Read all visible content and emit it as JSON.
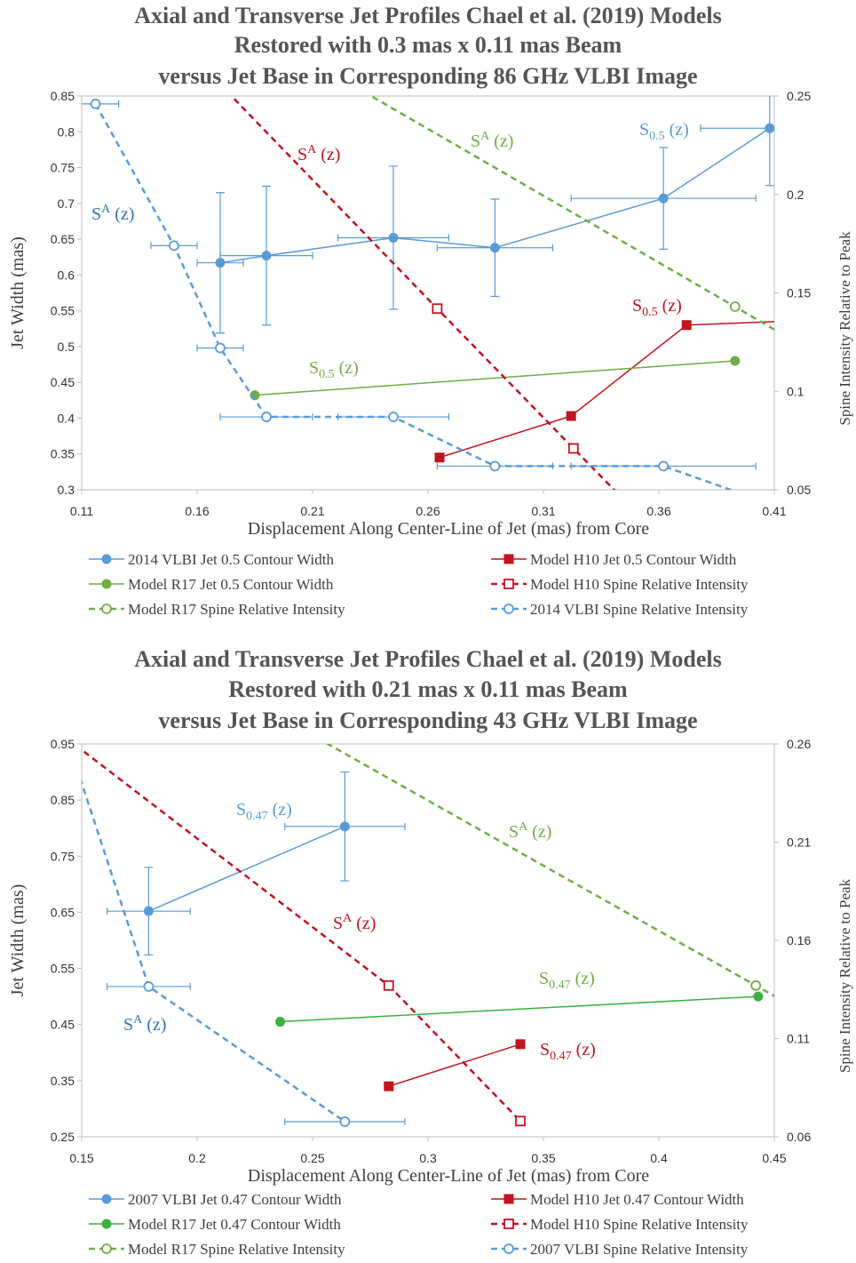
{
  "chart_data": [
    {
      "type": "line",
      "title": [
        "Axial and Transverse Jet Profiles Chael et al. (2019) Models",
        "Restored with 0.3 mas x 0.11 mas Beam",
        "versus Jet Base in Corresponding 86 GHz VLBI Image"
      ],
      "x_label": "Displacement Along Center-Line of Jet (mas)  from Core",
      "y_label": "Jet Width (mas)",
      "y2_label": "Spine Intensity Relative to Peak",
      "xlim": [
        0.11,
        0.41
      ],
      "xticks": [
        0.11,
        0.16,
        0.21,
        0.26,
        0.31,
        0.36,
        0.41
      ],
      "ylim": [
        0.3,
        0.85
      ],
      "yticks": [
        0.3,
        0.35,
        0.4,
        0.45,
        0.5,
        0.55,
        0.6,
        0.65,
        0.7,
        0.75,
        0.8,
        0.85
      ],
      "y2lim": [
        0.05,
        0.25
      ],
      "y2ticks": [
        0.05,
        0.1,
        0.15,
        0.2,
        0.25
      ],
      "series": [
        {
          "name": "2014 VLBI Jet 0.5 Contour Width",
          "color": "#5b9bd5",
          "marker": "circle",
          "line_style": "solid",
          "x": [
            0.17,
            0.19,
            0.245,
            0.289,
            0.362,
            0.408
          ],
          "values": [
            0.617,
            0.627,
            0.652,
            0.638,
            0.707,
            0.805
          ],
          "yerr": [
            0.098,
            0.097,
            0.1,
            0.068,
            0.071,
            0.08
          ],
          "xerr": [
            0.01,
            0.02,
            0.024,
            0.025,
            0.04,
            0.03
          ]
        },
        {
          "name": "Model H10 Jet 0.5 Contour Width",
          "color": "#c0141e",
          "marker": "square",
          "line_style": "solid",
          "x": [
            0.265,
            0.322,
            0.372,
            0.45
          ],
          "values": [
            0.345,
            0.403,
            0.53,
            0.54
          ]
        },
        {
          "name": "Model R17 Jet 0.5 Contour Width",
          "color": "#70ad47",
          "marker": "circle",
          "line_style": "solid",
          "x": [
            0.185,
            0.393
          ],
          "values": [
            0.432,
            0.48
          ]
        },
        {
          "name": "Model H10 Spine Relative Intensity",
          "color": "#c0141e",
          "marker": "open-square",
          "line_style": "dashed",
          "axis": "y2",
          "x": [
            0.16,
            0.264,
            0.323,
            0.37
          ],
          "values": [
            0.268,
            0.142,
            0.071,
            0.015
          ]
        },
        {
          "name": "Model R17 Spine Relative Intensity",
          "color": "#70ad47",
          "marker": "open-circle",
          "line_style": "dashed",
          "axis": "y2",
          "x": [
            0.2,
            0.393,
            0.45
          ],
          "values": [
            0.274,
            0.143,
            0.104
          ]
        },
        {
          "name": "2014 VLBI Spine Relative Intensity",
          "color": "#5b9bd5",
          "marker": "open-circle",
          "line_style": "dashed",
          "axis": "y2",
          "x": [
            0.116,
            0.15,
            0.17,
            0.19,
            0.245,
            0.289,
            0.362,
            0.42
          ],
          "values": [
            0.246,
            0.174,
            0.122,
            0.087,
            0.087,
            0.062,
            0.062,
            0.038
          ],
          "xerr": [
            0.01,
            0.01,
            0.01,
            0.02,
            0.024,
            0.025,
            0.04,
            null
          ]
        }
      ],
      "annotations": [
        {
          "base": "S",
          "sub": "0.5",
          "rest": "(z)",
          "color": "#5b9bd5"
        },
        {
          "base": "S",
          "sup": "A",
          "rest": "(z)",
          "color": "#c0141e"
        },
        {
          "base": "S",
          "sup": "A",
          "rest": "(z)",
          "color": "#70ad47"
        },
        {
          "base": "S",
          "sup": "A",
          "rest": "(z)",
          "color": "#2e75b6"
        },
        {
          "base": "S",
          "sub": "0.5",
          "rest": "(z)",
          "color": "#c0141e"
        },
        {
          "base": "S",
          "sub": "0.5",
          "rest": "(z)",
          "color": "#70ad47"
        }
      ]
    },
    {
      "type": "line",
      "title": [
        "Axial and Transverse Jet Profiles Chael et al. (2019) Models",
        "Restored with 0.21 mas x 0.11 mas Beam",
        "versus Jet Base in Corresponding 43 GHz VLBI Image"
      ],
      "x_label": "Displacement Along Center-Line of Jet (mas)  from Core",
      "y_label": "Jet Width (mas)",
      "y2_label": "Spine Intensity Relative to Peak",
      "xlim": [
        0.15,
        0.45
      ],
      "xticks": [
        0.15,
        0.2,
        0.25,
        0.3,
        0.35,
        0.4,
        0.45
      ],
      "ylim": [
        0.25,
        0.95
      ],
      "yticks": [
        0.25,
        0.35,
        0.45,
        0.55,
        0.65,
        0.75,
        0.85,
        0.95
      ],
      "y2lim": [
        0.06,
        0.26
      ],
      "y2ticks": [
        0.06,
        0.11,
        0.16,
        0.21,
        0.26
      ],
      "series": [
        {
          "name": "2007 VLBI Jet 0.47 Contour Width",
          "color": "#5b9bd5",
          "marker": "circle",
          "line_style": "solid",
          "x": [
            0.179,
            0.264
          ],
          "values": [
            0.652,
            0.803
          ],
          "yerr": [
            0.078,
            0.097
          ],
          "xerr": [
            0.018,
            0.026
          ]
        },
        {
          "name": "Model H10 Jet 0.47 Contour Width",
          "color": "#c0141e",
          "marker": "square",
          "line_style": "solid",
          "x": [
            0.283,
            0.34
          ],
          "values": [
            0.34,
            0.415
          ]
        },
        {
          "name": "Model R17 Jet 0.47 Contour Width",
          "color": "#3cb043",
          "marker": "circle",
          "line_style": "solid",
          "x": [
            0.236,
            0.443
          ],
          "values": [
            0.455,
            0.5
          ]
        },
        {
          "name": "Model H10 Spine Relative Intensity",
          "color": "#c0141e",
          "marker": "open-square",
          "line_style": "dashed",
          "axis": "y2",
          "x": [
            0.14,
            0.283,
            0.34
          ],
          "values": [
            0.266,
            0.137,
            0.068
          ]
        },
        {
          "name": "Model R17 Spine Relative Intensity",
          "color": "#70ad47",
          "marker": "open-circle",
          "line_style": "dashed",
          "axis": "y2",
          "x": [
            0.24,
            0.442,
            0.46
          ],
          "values": [
            0.271,
            0.137,
            0.125
          ]
        },
        {
          "name": "2007 VLBI Spine Relative Intensity",
          "color": "#5b9bd5",
          "marker": "open-circle",
          "line_style": "dashed",
          "axis": "y2",
          "x": [
            0.145,
            0.179,
            0.264
          ],
          "values": [
            0.258,
            0.1365,
            0.0677
          ],
          "xerr": [
            null,
            0.018,
            0.026
          ]
        }
      ],
      "annotations": [
        {
          "base": "S",
          "sub": "0.47",
          "rest": "(z)",
          "color": "#5b9bd5"
        },
        {
          "base": "S",
          "sup": "A",
          "rest": "(z)",
          "color": "#c0141e"
        },
        {
          "base": "S",
          "sup": "A",
          "rest": "(z)",
          "color": "#70ad47"
        },
        {
          "base": "S",
          "sup": "A",
          "rest": "(z)",
          "color": "#2e75b6"
        },
        {
          "base": "S",
          "sub": "0.47",
          "rest": "(z)",
          "color": "#70ad47"
        },
        {
          "base": "S",
          "sub": "0.47",
          "rest": "(z)",
          "color": "#c0141e"
        }
      ]
    }
  ]
}
